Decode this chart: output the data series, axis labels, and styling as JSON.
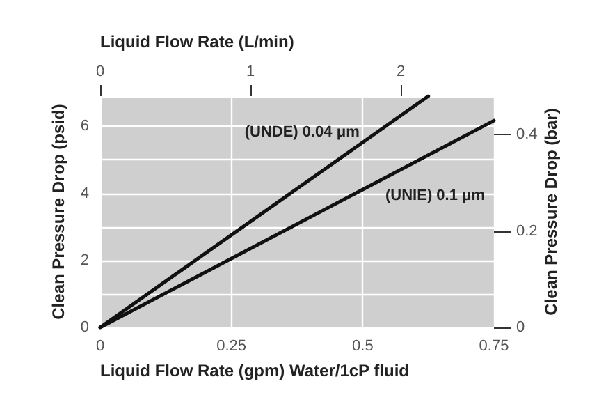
{
  "chart_data": {
    "type": "line",
    "xlabel": "Liquid Flow Rate (gpm) Water/1cP fluid",
    "ylabel": "Clean Pressure Drop (psid)",
    "y2label": "Clean Pressure Drop (bar)",
    "x2label": "Liquid Flow Rate (L/min)",
    "xlim": [
      0,
      0.75
    ],
    "xticks": [
      0,
      0.25,
      0.5,
      0.75
    ],
    "x2lim": [
      0,
      2.62
    ],
    "x2ticks": [
      0,
      1,
      2
    ],
    "ylim": [
      0,
      6.9
    ],
    "yticks": [
      0,
      {
        "value": 1,
        "label": null
      },
      2,
      {
        "value": 3,
        "label": null
      },
      4,
      {
        "value": 5,
        "label": null
      },
      6
    ],
    "y2lim": [
      0,
      0.48
    ],
    "y2ticks": [
      0,
      0.2,
      0.4
    ],
    "series": [
      {
        "name": "(UNDE) 0.04 μm",
        "color": "#111111",
        "x": [
          0,
          0.625
        ],
        "values": [
          0,
          6.9
        ]
      },
      {
        "name": "(UNIE) 0.1 μm",
        "color": "#111111",
        "x": [
          0,
          0.75
        ],
        "values": [
          0,
          6.17
        ]
      }
    ],
    "grid": true,
    "legend": false,
    "marker": "none",
    "line_style": "solid"
  }
}
